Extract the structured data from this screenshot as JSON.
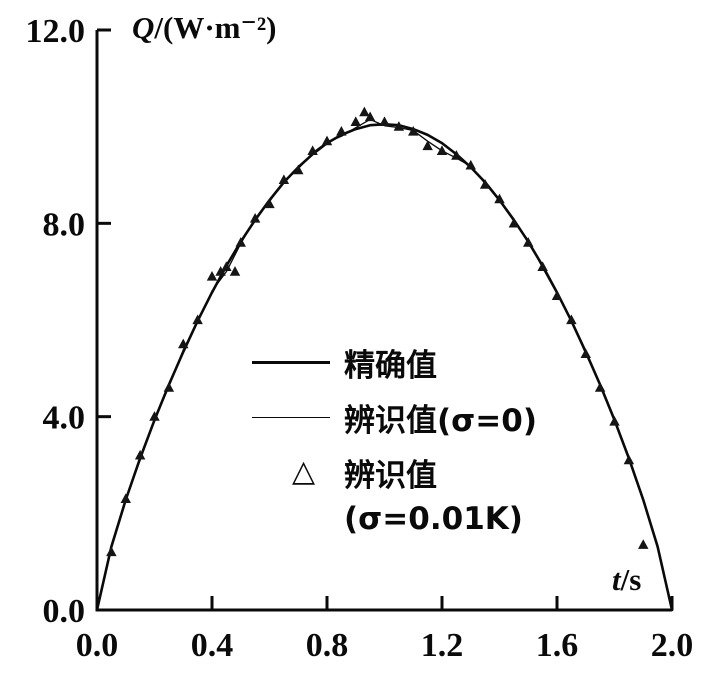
{
  "chart_data": {
    "type": "line",
    "title": "",
    "ylabel_var": "Q",
    "ylabel_unit": "/(W·m⁻²)",
    "xlabel_var": "t",
    "xlabel_unit": "/s",
    "xlim": [
      0.0,
      2.0
    ],
    "ylim": [
      0.0,
      12.0
    ],
    "grid": false,
    "x_ticks": [
      0.0,
      0.4,
      0.8,
      1.2,
      1.6,
      2.0
    ],
    "x_tick_labels": [
      "0.0",
      "0.4",
      "0.8",
      "1.2",
      "1.6",
      "2.0"
    ],
    "y_ticks": [
      0.0,
      4.0,
      8.0,
      12.0
    ],
    "y_tick_labels": [
      "0.0",
      "4.0",
      "8.0",
      "12.0"
    ],
    "colors": {
      "line": "#0a0a0a",
      "background": "#ffffff"
    },
    "legend_position": "inside-center",
    "series": [
      {
        "name": "精确值",
        "style": "line-thick",
        "x": [
          0,
          0.05,
          0.1,
          0.15,
          0.2,
          0.25,
          0.3,
          0.35,
          0.4,
          0.45,
          0.5,
          0.55,
          0.6,
          0.65,
          0.7,
          0.75,
          0.8,
          0.85,
          0.9,
          0.95,
          1.0,
          1.05,
          1.1,
          1.15,
          1.2,
          1.25,
          1.3,
          1.35,
          1.4,
          1.45,
          1.5,
          1.55,
          1.6,
          1.65,
          1.7,
          1.75,
          1.8,
          1.85,
          1.9,
          1.95,
          2.0
        ],
        "y": [
          0,
          1.31,
          2.28,
          3.14,
          3.93,
          4.66,
          5.34,
          5.98,
          6.57,
          7.12,
          7.62,
          8.07,
          8.48,
          8.85,
          9.16,
          9.43,
          9.66,
          9.83,
          9.95,
          10.03,
          10.05,
          10.03,
          9.95,
          9.83,
          9.66,
          9.43,
          9.16,
          8.85,
          8.48,
          8.07,
          7.62,
          7.12,
          6.57,
          5.98,
          5.34,
          4.66,
          3.93,
          3.14,
          2.28,
          1.31,
          0
        ]
      },
      {
        "name": "辨识值(σ=0)",
        "style": "line-thin",
        "x": [
          0,
          0.05,
          0.1,
          0.15,
          0.2,
          0.25,
          0.3,
          0.35,
          0.4,
          0.45,
          0.5,
          0.55,
          0.6,
          0.65,
          0.7,
          0.75,
          0.8,
          0.85,
          0.9,
          0.95,
          1.0,
          1.05,
          1.1,
          1.15,
          1.2,
          1.25,
          1.3,
          1.35,
          1.4,
          1.45,
          1.5,
          1.55,
          1.6,
          1.65,
          1.7,
          1.75,
          1.8,
          1.85,
          1.9,
          1.95,
          2.0
        ],
        "y": [
          0,
          1.28,
          2.3,
          3.1,
          3.95,
          4.62,
          5.38,
          5.95,
          6.6,
          7.0,
          7.58,
          8.1,
          8.45,
          8.88,
          9.13,
          9.46,
          9.68,
          9.8,
          9.98,
          10.15,
          10.02,
          9.98,
          9.92,
          9.7,
          9.5,
          9.35,
          9.18,
          8.82,
          8.5,
          8.04,
          7.65,
          7.08,
          6.55,
          6.0,
          5.3,
          4.68,
          3.9,
          3.16,
          2.25,
          1.34,
          0
        ]
      },
      {
        "name": "辨识值(σ=0.01K)",
        "style": "triangle-markers",
        "x": [
          0.05,
          0.1,
          0.15,
          0.2,
          0.25,
          0.3,
          0.35,
          0.4,
          0.43,
          0.45,
          0.48,
          0.5,
          0.55,
          0.6,
          0.65,
          0.7,
          0.75,
          0.8,
          0.85,
          0.9,
          0.93,
          0.95,
          1.0,
          1.05,
          1.1,
          1.15,
          1.2,
          1.25,
          1.3,
          1.35,
          1.4,
          1.45,
          1.5,
          1.55,
          1.6,
          1.65,
          1.7,
          1.75,
          1.8,
          1.85,
          1.9
        ],
        "y": [
          1.2,
          2.3,
          3.2,
          4.0,
          4.6,
          5.5,
          6.0,
          6.9,
          7.0,
          7.1,
          7.0,
          7.6,
          8.1,
          8.4,
          8.9,
          9.1,
          9.5,
          9.7,
          9.9,
          10.1,
          10.3,
          10.2,
          10.1,
          10.0,
          9.9,
          9.6,
          9.5,
          9.4,
          9.2,
          8.8,
          8.5,
          8.0,
          7.6,
          7.1,
          6.5,
          6.0,
          5.3,
          4.6,
          3.9,
          3.1,
          1.35
        ]
      }
    ],
    "legend": [
      {
        "symbol": "line-thick",
        "label": "精确值"
      },
      {
        "symbol": "line-thin",
        "label": "辨识值(σ=0)"
      },
      {
        "symbol": "triangle",
        "label": "辨识值"
      },
      {
        "symbol": "none",
        "label": "(σ=0.01K)"
      }
    ]
  }
}
